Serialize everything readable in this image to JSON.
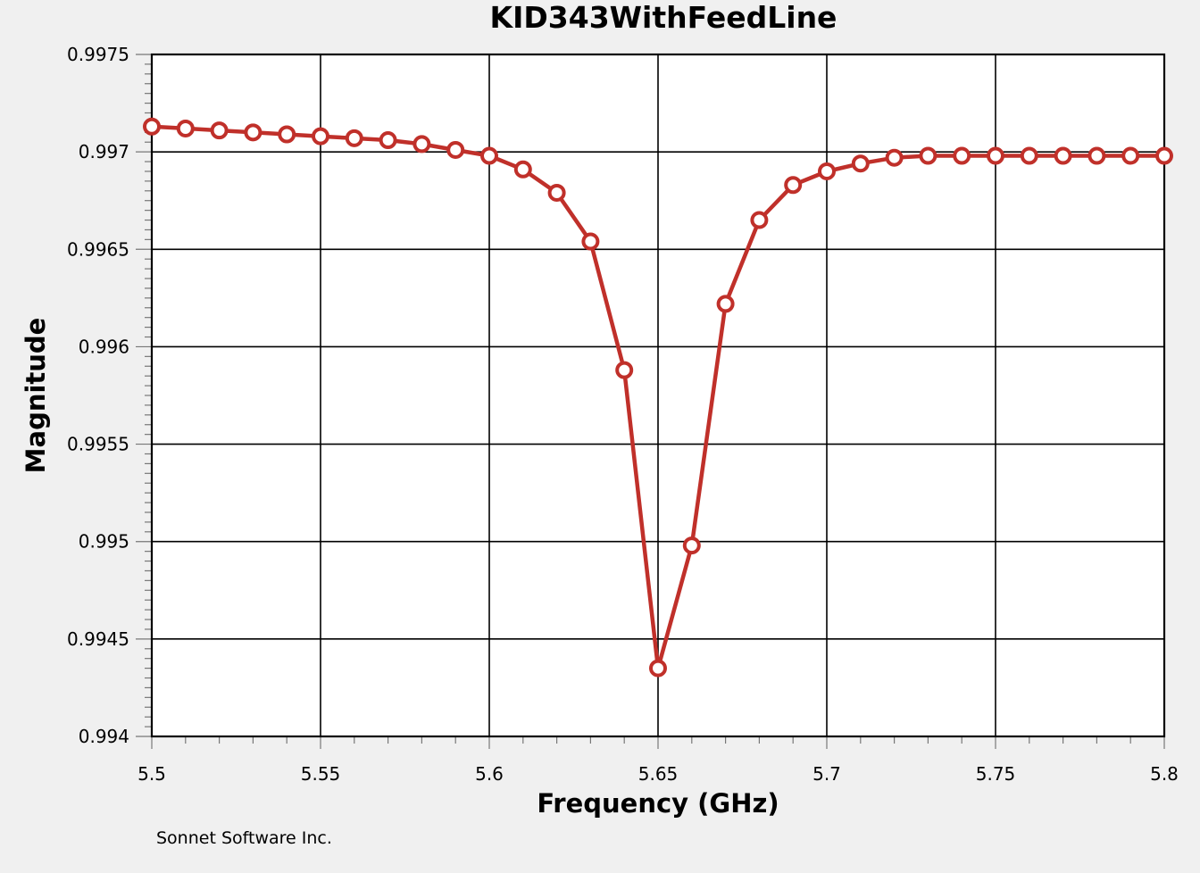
{
  "chart_data": {
    "type": "line",
    "title": "KID343WithFeedLine",
    "xlabel": "Frequency (GHz)",
    "ylabel": "Magnitude",
    "xlim": [
      5.5,
      5.8
    ],
    "ylim": [
      0.994,
      0.9975
    ],
    "x_ticks": [
      "5.5",
      "5.55",
      "5.6",
      "5.65",
      "5.7",
      "5.75",
      "5.8"
    ],
    "y_ticks": [
      "0.994",
      "0.9945",
      "0.995",
      "0.9955",
      "0.996",
      "0.9965",
      "0.997",
      "0.9975"
    ],
    "grid": true,
    "marker": "open-circle",
    "line_color": "#c0302a",
    "series": [
      {
        "x": [
          5.5,
          5.51,
          5.52,
          5.53,
          5.54,
          5.55,
          5.56,
          5.57,
          5.58,
          5.59,
          5.6,
          5.61,
          5.62,
          5.63,
          5.64,
          5.65,
          5.66,
          5.67,
          5.68,
          5.69,
          5.7,
          5.71,
          5.72,
          5.73,
          5.74,
          5.75,
          5.76,
          5.77,
          5.78,
          5.79,
          5.8
        ],
        "values": [
          0.99713,
          0.99712,
          0.99711,
          0.9971,
          0.99709,
          0.99708,
          0.99707,
          0.99706,
          0.99704,
          0.99701,
          0.99698,
          0.99691,
          0.99679,
          0.99654,
          0.99588,
          0.99435,
          0.99498,
          0.99622,
          0.99665,
          0.99683,
          0.9969,
          0.99694,
          0.99697,
          0.99698,
          0.99698,
          0.99698,
          0.99698,
          0.99698,
          0.99698,
          0.99698,
          0.99698
        ]
      }
    ]
  },
  "footer": "Sonnet Software Inc."
}
